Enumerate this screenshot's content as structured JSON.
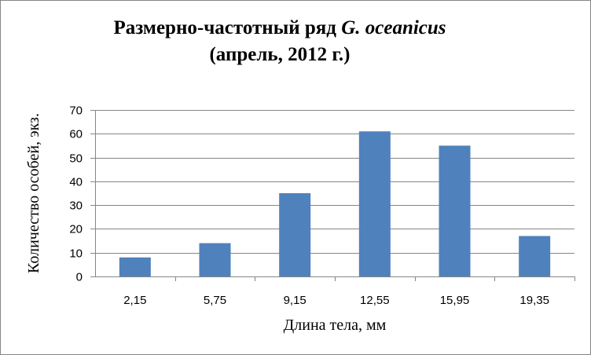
{
  "title": {
    "line1_prefix": "Размерно-частотный ряд ",
    "line1_species": "G. oceanicus",
    "line2": "(апрель, 2012 г.)"
  },
  "colors": {
    "bar": "#4f81bd",
    "grid": "#868686",
    "axis": "#868686",
    "frame": "#868686"
  },
  "chart_data": {
    "type": "bar",
    "categories": [
      "2,15",
      "5,75",
      "9,15",
      "12,55",
      "15,95",
      "19,35"
    ],
    "values": [
      8,
      14,
      35,
      61,
      55,
      17
    ],
    "title": "Размерно-частотный ряд G. oceanicus (апрель, 2012 г.)",
    "xlabel": "Длина тела, мм",
    "ylabel": "Количество особей, экз.",
    "ylim": [
      0,
      70
    ],
    "yticks": [
      "0",
      "10",
      "20",
      "30",
      "40",
      "50",
      "60",
      "70"
    ],
    "grid": true,
    "legend": "none"
  }
}
